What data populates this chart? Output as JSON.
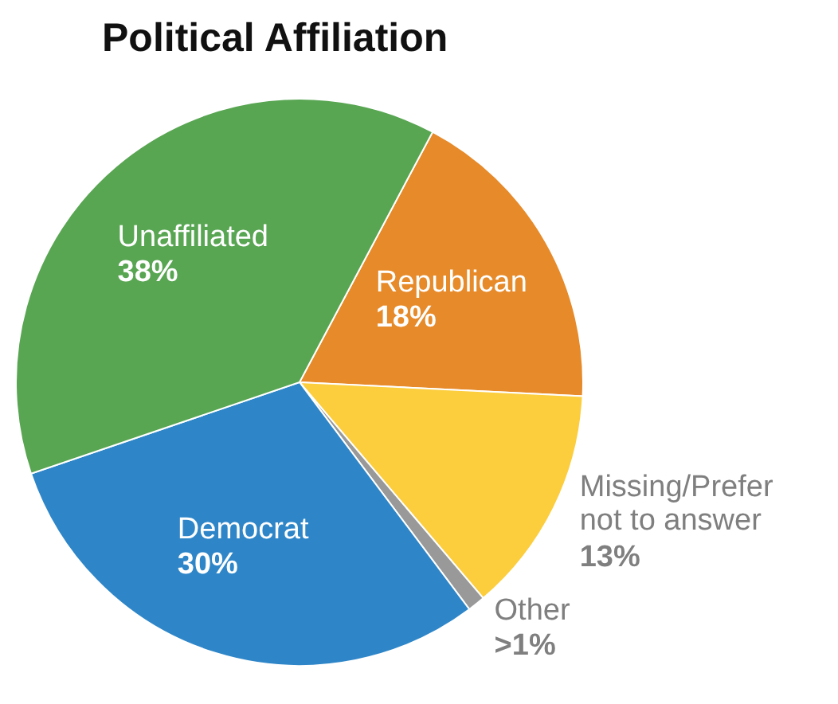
{
  "chart_data": {
    "type": "pie",
    "title": "Political Affiliation",
    "categories": [
      "Republican",
      "Missing/Prefer not to answer",
      "Other",
      "Democrat",
      "Unaffiliated"
    ],
    "values": [
      18,
      13,
      1,
      30,
      38
    ],
    "value_labels": [
      "18%",
      "13%",
      ">1%",
      "30%",
      "38%"
    ],
    "colors": [
      "#e68a2a",
      "#fccd3c",
      "#999999",
      "#2e86c8",
      "#58a552"
    ]
  }
}
